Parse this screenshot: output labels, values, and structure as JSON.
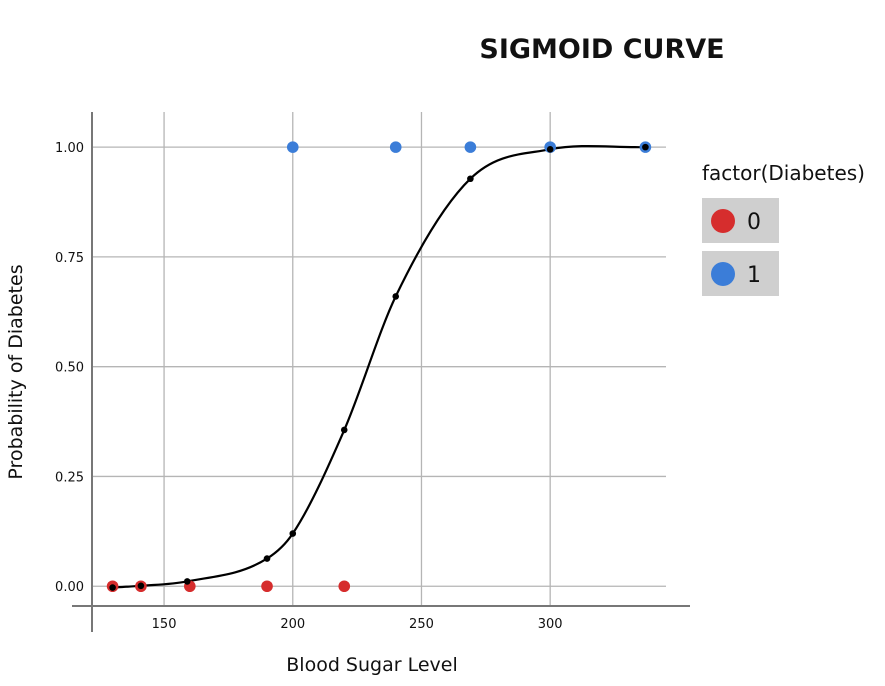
{
  "chart_data": {
    "type": "scatter",
    "title": "SIGMOID CURVE",
    "xlabel": "Blood Sugar Level",
    "ylabel": "Probability of Diabetes",
    "xlim": [
      122,
      345
    ],
    "ylim": [
      -0.045,
      1.08
    ],
    "x_ticks": [
      150,
      200,
      250,
      300
    ],
    "x_tick_labels": [
      "150",
      "200",
      "250",
      "300"
    ],
    "y_ticks": [
      0,
      0.25,
      0.5,
      0.75,
      1
    ],
    "y_tick_labels": [
      "0.00",
      "0.25",
      "0.50",
      "0.75",
      "1.00"
    ],
    "grid": true,
    "legend": {
      "title": "factor(Diabetes)",
      "position": "right",
      "entries": [
        {
          "label": "0",
          "color": "#d62d2d"
        },
        {
          "label": "1",
          "color": "#3b7dd8"
        }
      ]
    },
    "series": [
      {
        "label": "0",
        "color": "#d62d2d",
        "x": [
          130,
          141,
          160,
          190,
          220
        ],
        "y": [
          0,
          0,
          0,
          0,
          0
        ]
      },
      {
        "label": "1",
        "color": "#3b7dd8",
        "x": [
          200,
          240,
          269,
          300,
          337
        ],
        "y": [
          1,
          1,
          1,
          1,
          1
        ]
      }
    ],
    "fitted_curve": {
      "color": "#000000",
      "x": [
        130,
        141,
        159,
        190,
        200,
        220,
        240,
        269,
        300,
        337
      ],
      "y": [
        -0.003,
        0.001,
        0.011,
        0.063,
        0.12,
        0.356,
        0.66,
        0.928,
        0.995,
        1.0
      ]
    }
  }
}
